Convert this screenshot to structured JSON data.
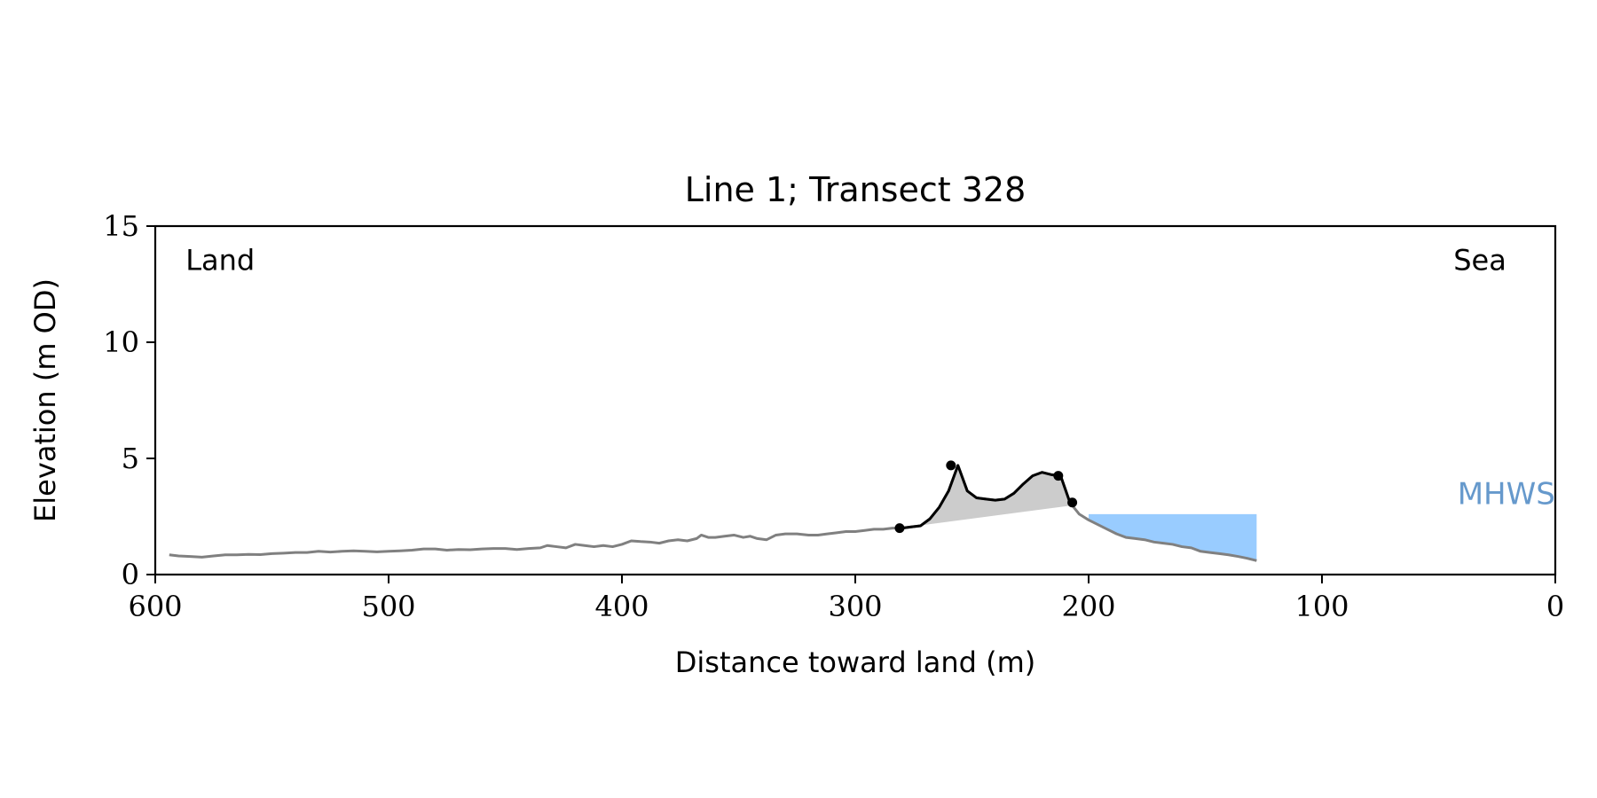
{
  "chart_data": {
    "type": "area",
    "title": "Line 1; Transect 328",
    "xlabel": "Distance toward land (m)",
    "ylabel": "Elevation (m OD)",
    "xlim": [
      600,
      0
    ],
    "ylim": [
      0,
      15
    ],
    "x_ticks": [
      600,
      500,
      400,
      300,
      200,
      100,
      0
    ],
    "y_ticks": [
      0,
      5,
      10,
      15
    ],
    "grid": false,
    "annotations": [
      {
        "text": "Land",
        "x": 587,
        "y": 13.5
      },
      {
        "text": "Sea",
        "x": 40,
        "y": 13.5
      },
      {
        "text": "MHWS",
        "x": 40,
        "y": 3.5
      }
    ],
    "colors": {
      "profile": "#808080",
      "dune": "#000000",
      "dune_fill": "#cccccc",
      "water": "#99ccff",
      "mhws_label": "#6699cc",
      "axes": "#000000"
    },
    "series": [
      {
        "x": [
          594,
          590,
          585,
          580,
          575,
          570,
          565,
          560,
          555,
          550,
          545,
          540,
          535,
          530,
          525,
          520,
          515,
          510,
          505,
          500,
          495,
          490,
          485,
          480,
          475,
          470,
          465,
          460,
          455,
          450,
          445,
          440,
          435,
          432,
          428,
          424,
          420,
          416,
          412,
          408,
          404,
          400,
          396,
          392,
          388,
          384,
          380,
          376,
          372,
          368,
          366,
          363,
          360,
          356,
          352,
          348,
          345,
          342,
          338,
          334,
          330,
          325,
          320,
          316,
          312,
          308,
          304,
          300,
          296,
          292,
          288,
          284,
          280,
          276,
          272,
          268,
          264,
          260,
          256,
          252,
          248,
          244,
          240,
          236,
          232,
          228,
          224,
          220,
          216,
          212,
          208,
          204,
          200,
          196,
          192,
          188,
          184,
          180,
          176,
          172,
          168,
          164,
          160,
          156,
          152,
          148,
          144,
          140,
          136,
          132,
          128
        ],
        "y": [
          0.85,
          0.8,
          0.78,
          0.75,
          0.8,
          0.85,
          0.85,
          0.87,
          0.86,
          0.9,
          0.92,
          0.95,
          0.95,
          1.0,
          0.97,
          1.0,
          1.02,
          1.0,
          0.98,
          1.0,
          1.02,
          1.05,
          1.1,
          1.1,
          1.05,
          1.08,
          1.07,
          1.1,
          1.12,
          1.12,
          1.08,
          1.12,
          1.15,
          1.25,
          1.2,
          1.15,
          1.3,
          1.25,
          1.2,
          1.25,
          1.2,
          1.3,
          1.45,
          1.42,
          1.4,
          1.35,
          1.45,
          1.5,
          1.45,
          1.55,
          1.7,
          1.6,
          1.6,
          1.65,
          1.7,
          1.6,
          1.65,
          1.55,
          1.5,
          1.7,
          1.75,
          1.75,
          1.7,
          1.7,
          1.75,
          1.8,
          1.85,
          1.85,
          1.9,
          1.95,
          1.95,
          2.0,
          2.0,
          2.05,
          2.1,
          2.4,
          2.9,
          3.6,
          4.7,
          3.6,
          3.3,
          3.25,
          3.2,
          3.25,
          3.5,
          3.9,
          4.25,
          4.4,
          4.3,
          4.25,
          3.1,
          2.6,
          2.35,
          2.15,
          1.95,
          1.75,
          1.6,
          1.55,
          1.5,
          1.4,
          1.35,
          1.3,
          1.2,
          1.15,
          1.0,
          0.95,
          0.9,
          0.85,
          0.78,
          0.7,
          0.6
        ],
        "dune_range": [
          281,
          207
        ],
        "dune_markers": [
          {
            "x": 281,
            "y": 2.0
          },
          {
            "x": 259,
            "y": 4.7
          },
          {
            "x": 213,
            "y": 4.25
          },
          {
            "x": 207,
            "y": 3.1
          }
        ],
        "mhws_level": 2.6,
        "mhws_x_range": [
          200,
          128
        ]
      }
    ]
  }
}
